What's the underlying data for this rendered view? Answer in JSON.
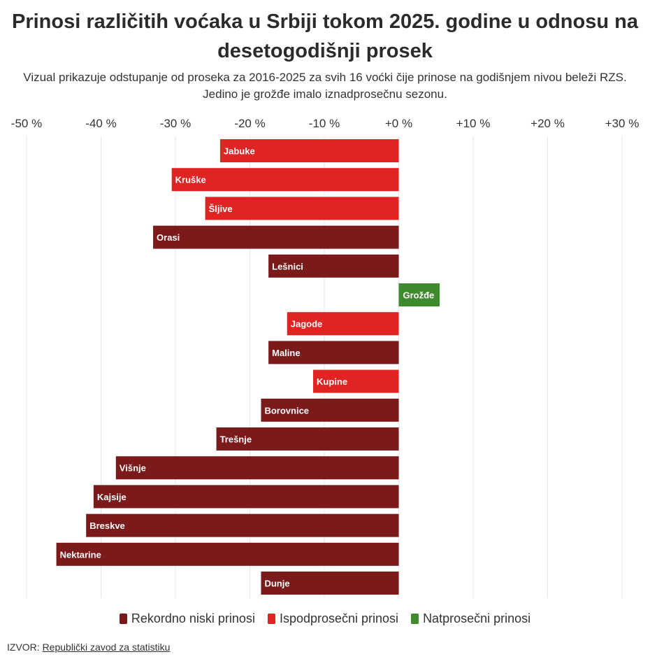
{
  "header": {
    "title": "Prinosi različitih voćaka u Srbiji tokom 2025. godine u odnosu na desetogodišnji prosek",
    "subtitle_line1": "Vizual prikazuje odstupanje od proseka za 2016-2025 za svih 16 voćki čije prinose na godišnjem nivou beleži RZS.",
    "subtitle_line2": "Jedino je grožđe imalo iznadprosečnu sezonu."
  },
  "colors": {
    "record_low": "#7a1a1a",
    "below_average": "#e02424",
    "above_average": "#3f8a2e",
    "grid": "#e6e6e6"
  },
  "legend": {
    "record_low": "Rekordno niski prinosi",
    "below_average": "Ispodprosečni prinosi",
    "above_average": "Natprosečni prinosi"
  },
  "source": {
    "label": "IZVOR:",
    "name": "Republički zavod za statistiku"
  },
  "chart_data": {
    "type": "bar",
    "orientation": "horizontal",
    "title": "Prinosi različitih voćaka u Srbiji tokom 2025. godine u odnosu na desetogodišnji prosek",
    "xlabel": "",
    "ylabel": "",
    "xlim": [
      -50,
      30
    ],
    "xticks": [
      -50,
      -40,
      -30,
      -20,
      -10,
      0,
      10,
      20,
      30
    ],
    "xtick_labels": [
      "-50 %",
      "-40 %",
      "-30 %",
      "-20 %",
      "-10 %",
      "+0 %",
      "+10 %",
      "+20 %",
      "+30 %"
    ],
    "grid": true,
    "legend_position": "bottom",
    "categories": [
      "Jabuke",
      "Kruške",
      "Šljive",
      "Orasi",
      "Lešnici",
      "Grožđe",
      "Jagode",
      "Maline",
      "Kupine",
      "Borovnice",
      "Trešnje",
      "Višnje",
      "Kajsije",
      "Breskve",
      "Nektarine",
      "Dunje"
    ],
    "values": [
      -24,
      -30.5,
      -26,
      -33,
      -17.5,
      5.5,
      -15,
      -17.5,
      -11.5,
      -18.5,
      -24.5,
      -38,
      -41,
      -42,
      -46,
      -18.5
    ],
    "groups": [
      "below_average",
      "below_average",
      "below_average",
      "record_low",
      "record_low",
      "above_average",
      "below_average",
      "record_low",
      "below_average",
      "record_low",
      "record_low",
      "record_low",
      "record_low",
      "record_low",
      "record_low",
      "record_low"
    ]
  }
}
